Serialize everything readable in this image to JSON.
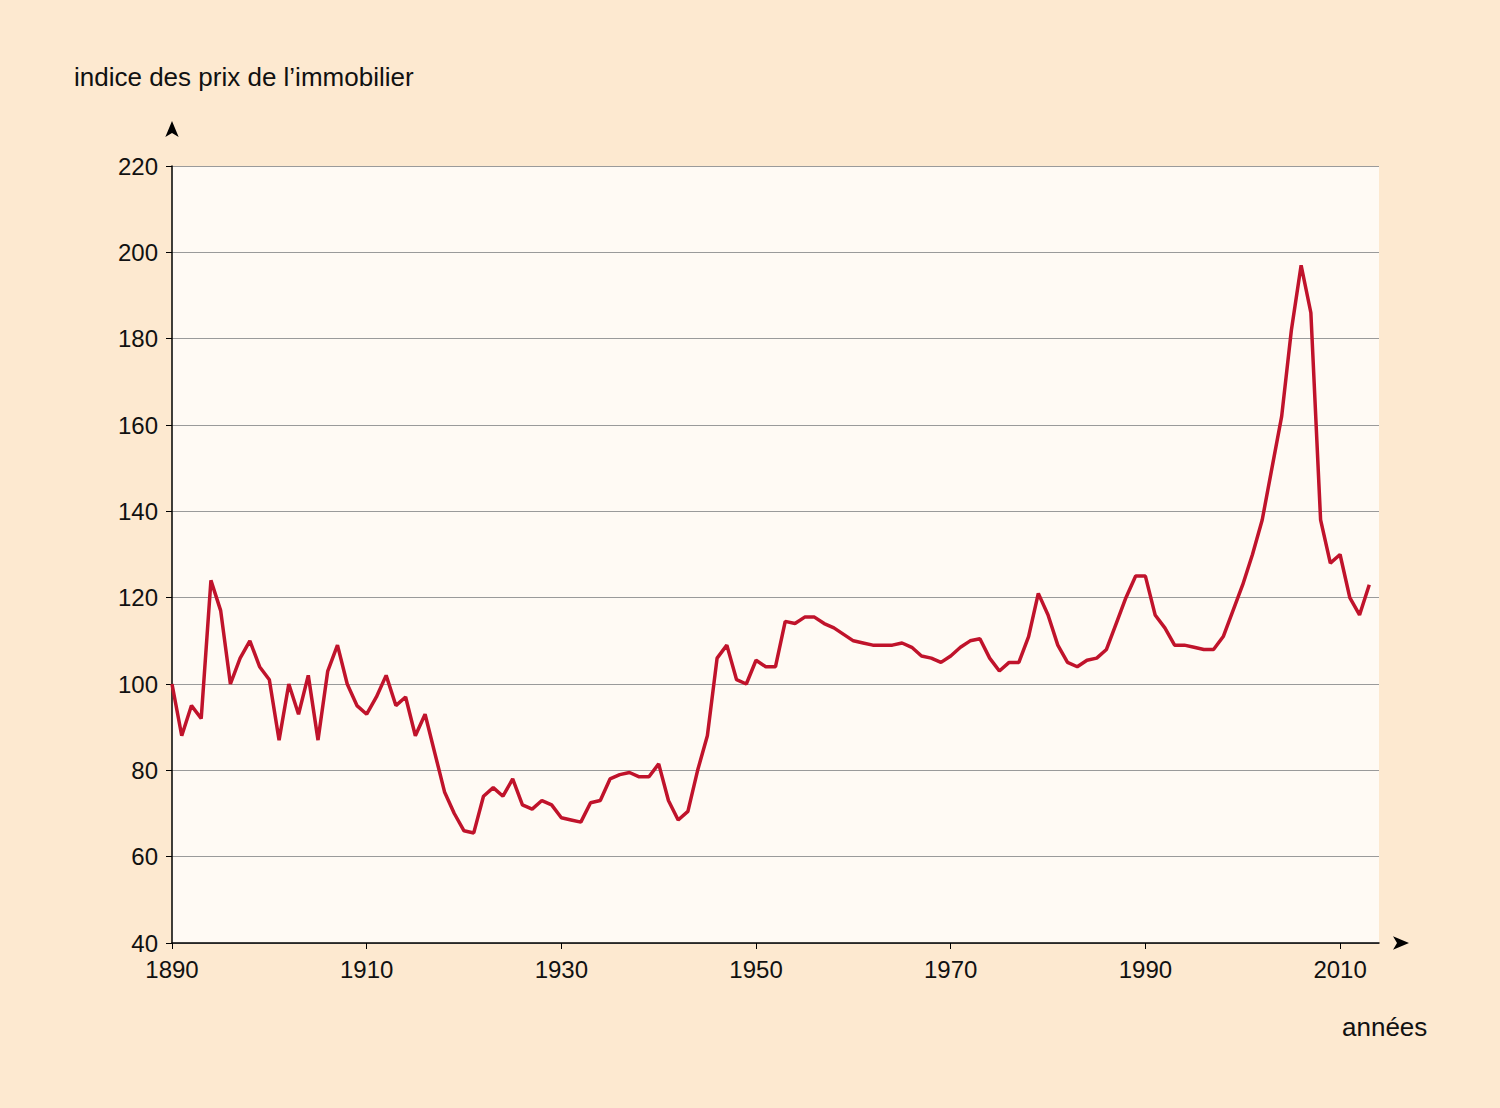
{
  "chart_data": {
    "type": "line",
    "x_label": "années",
    "y_label": "indice des prix de l’immobilier",
    "x": [
      1890,
      1891,
      1892,
      1893,
      1894,
      1895,
      1896,
      1897,
      1898,
      1899,
      1900,
      1901,
      1902,
      1903,
      1904,
      1905,
      1906,
      1907,
      1908,
      1909,
      1910,
      1911,
      1912,
      1913,
      1914,
      1915,
      1916,
      1917,
      1918,
      1919,
      1920,
      1921,
      1922,
      1923,
      1924,
      1925,
      1926,
      1927,
      1928,
      1929,
      1930,
      1931,
      1932,
      1933,
      1934,
      1935,
      1936,
      1937,
      1938,
      1939,
      1940,
      1941,
      1942,
      1943,
      1944,
      1945,
      1946,
      1947,
      1948,
      1949,
      1950,
      1951,
      1952,
      1953,
      1954,
      1955,
      1956,
      1957,
      1958,
      1959,
      1960,
      1961,
      1962,
      1963,
      1964,
      1965,
      1966,
      1967,
      1968,
      1969,
      1970,
      1971,
      1972,
      1973,
      1974,
      1975,
      1976,
      1977,
      1978,
      1979,
      1980,
      1981,
      1982,
      1983,
      1984,
      1985,
      1986,
      1987,
      1988,
      1989,
      1990,
      1991,
      1992,
      1993,
      1994,
      1995,
      1996,
      1997,
      1998,
      1999,
      2000,
      2001,
      2002,
      2003,
      2004,
      2005,
      2006,
      2007,
      2008,
      2009,
      2010,
      2011,
      2012,
      2013
    ],
    "values": [
      100,
      88,
      95,
      92,
      124,
      117,
      100,
      106,
      110,
      104,
      101,
      87,
      100,
      93,
      102,
      87,
      103,
      109,
      100,
      95,
      93,
      97,
      102,
      95,
      97,
      88,
      93,
      84,
      75,
      70,
      66,
      65.5,
      74,
      76,
      74,
      78,
      72,
      71,
      73,
      72,
      69,
      68.5,
      68,
      72.5,
      73,
      78,
      79,
      79.5,
      78.5,
      78.5,
      81.5,
      73,
      68.5,
      70.5,
      80,
      88,
      106,
      109,
      101,
      100,
      105.5,
      104,
      104,
      114.5,
      114,
      115.5,
      115.5,
      114,
      113,
      111.5,
      110,
      109.5,
      109,
      109,
      109,
      109.5,
      108.5,
      106.5,
      106,
      105,
      106.5,
      108.5,
      110,
      110.5,
      106,
      103,
      105,
      105,
      111,
      121,
      116,
      109,
      105,
      104,
      105.5,
      106,
      108,
      114,
      120,
      125,
      125,
      116,
      113,
      109,
      109,
      108.5,
      108,
      108,
      111,
      117,
      123,
      130,
      138,
      150,
      162,
      182,
      197,
      186,
      138,
      128,
      130,
      120,
      116,
      123
    ],
    "color": "#c0132b",
    "xlim": [
      1890,
      2014
    ],
    "ylim": [
      40,
      220
    ],
    "xticks": [
      1890,
      1910,
      1930,
      1950,
      1970,
      1990,
      2010
    ],
    "yticks": [
      40,
      60,
      80,
      100,
      120,
      140,
      160,
      180,
      200,
      220
    ],
    "grid": true
  }
}
